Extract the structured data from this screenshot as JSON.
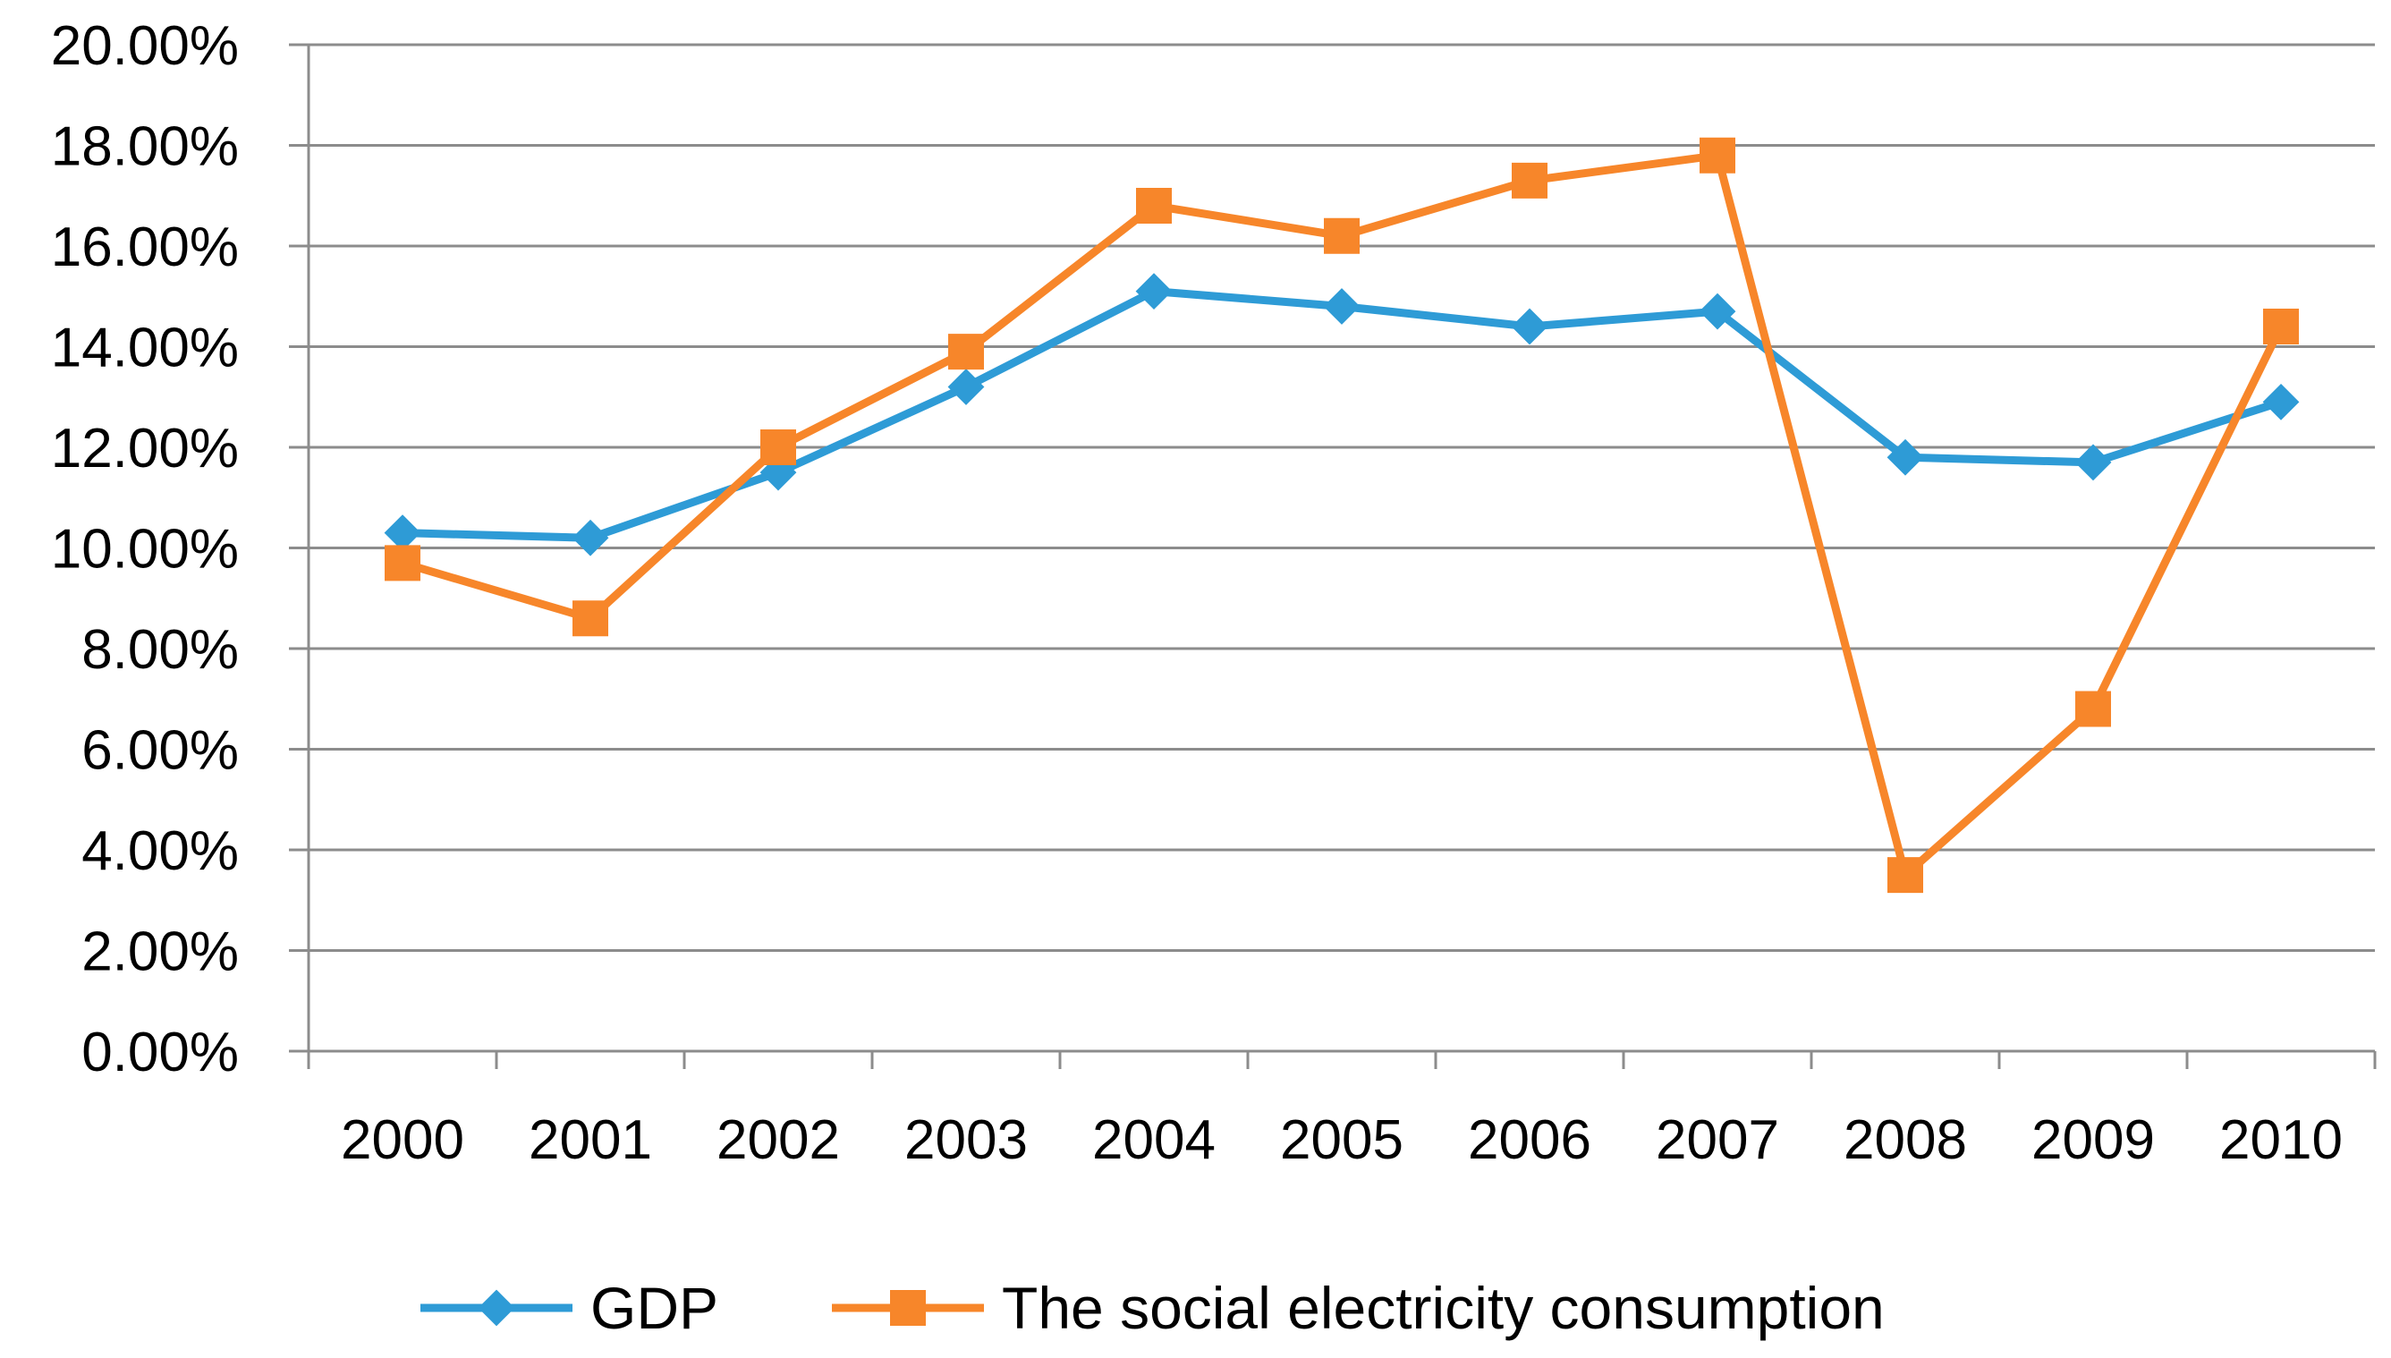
{
  "chart_data": {
    "type": "line",
    "title": "",
    "xlabel": "",
    "ylabel": "",
    "categories": [
      "2000",
      "2001",
      "2002",
      "2003",
      "2004",
      "2005",
      "2006",
      "2007",
      "2008",
      "2009",
      "2010"
    ],
    "ylim": [
      0,
      20
    ],
    "yticks": [
      0,
      2,
      4,
      6,
      8,
      10,
      12,
      14,
      16,
      18,
      20
    ],
    "ytick_labels": [
      "0.00%",
      "2.00%",
      "4.00%",
      "6.00%",
      "8.00%",
      "10.00%",
      "12.00%",
      "14.00%",
      "16.00%",
      "18.00%",
      "20.00%"
    ],
    "grid": true,
    "legend_position": "bottom",
    "series": [
      {
        "name": "GDP",
        "color": "#2E9BD6",
        "marker": "diamond",
        "values": [
          10.3,
          10.2,
          11.5,
          13.2,
          15.1,
          14.8,
          14.4,
          14.7,
          11.8,
          11.7,
          12.9
        ]
      },
      {
        "name": "The social electricity consumption",
        "color": "#F7862A",
        "marker": "square",
        "values": [
          9.7,
          8.6,
          12.0,
          13.9,
          16.8,
          16.2,
          17.3,
          17.8,
          3.5,
          6.8,
          14.4
        ]
      }
    ]
  }
}
